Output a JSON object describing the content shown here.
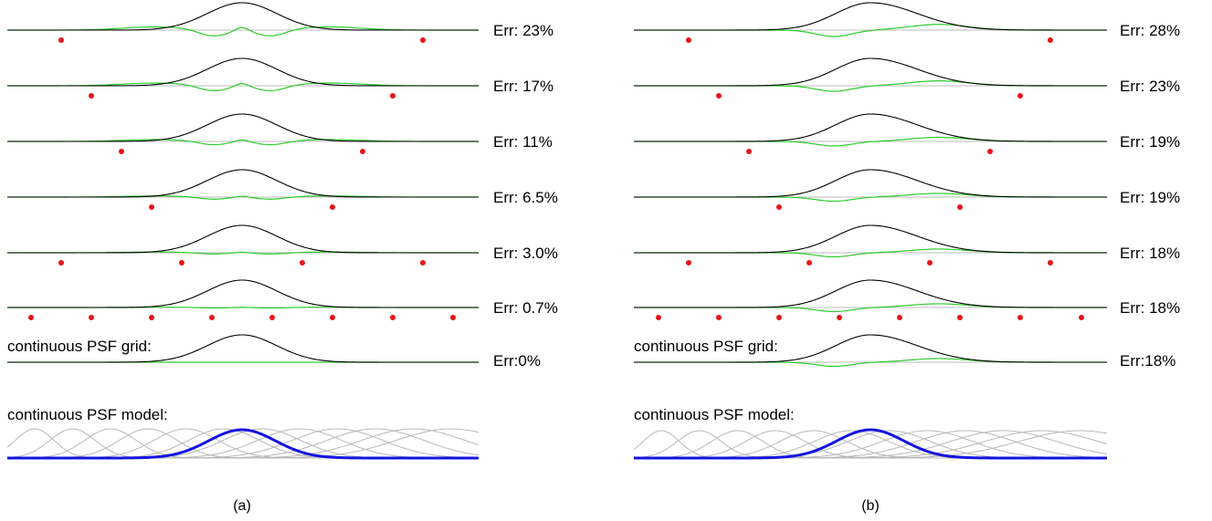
{
  "panels": [
    {
      "caption": "(a)",
      "rows": [
        {
          "err": "Err: 23%"
        },
        {
          "err": "Err: 17%"
        },
        {
          "err": "Err: 11%"
        },
        {
          "err": "Err: 6.5%"
        },
        {
          "err": "Err: 3.0%"
        },
        {
          "err": "Err: 0.7%"
        }
      ],
      "grid_label": "continuous PSF grid:",
      "grid_err": "Err:0%",
      "model_label": "continuous PSF model:"
    },
    {
      "caption": "(b)",
      "rows": [
        {
          "err": "Err: 28%"
        },
        {
          "err": "Err: 23%"
        },
        {
          "err": "Err: 19%"
        },
        {
          "err": "Err: 19%"
        },
        {
          "err": "Err: 18%"
        },
        {
          "err": "Err: 18%"
        }
      ],
      "grid_label": "continuous PSF grid:",
      "grid_err": "Err:18%",
      "model_label": "continuous PSF model:"
    }
  ],
  "colors": {
    "profile": "#000000",
    "residual": "#2ecc2e",
    "baseline": "#bbbbbb",
    "sample_point": "#e8141b",
    "basis": "#b8b8b8",
    "model": "#1414e0"
  }
}
